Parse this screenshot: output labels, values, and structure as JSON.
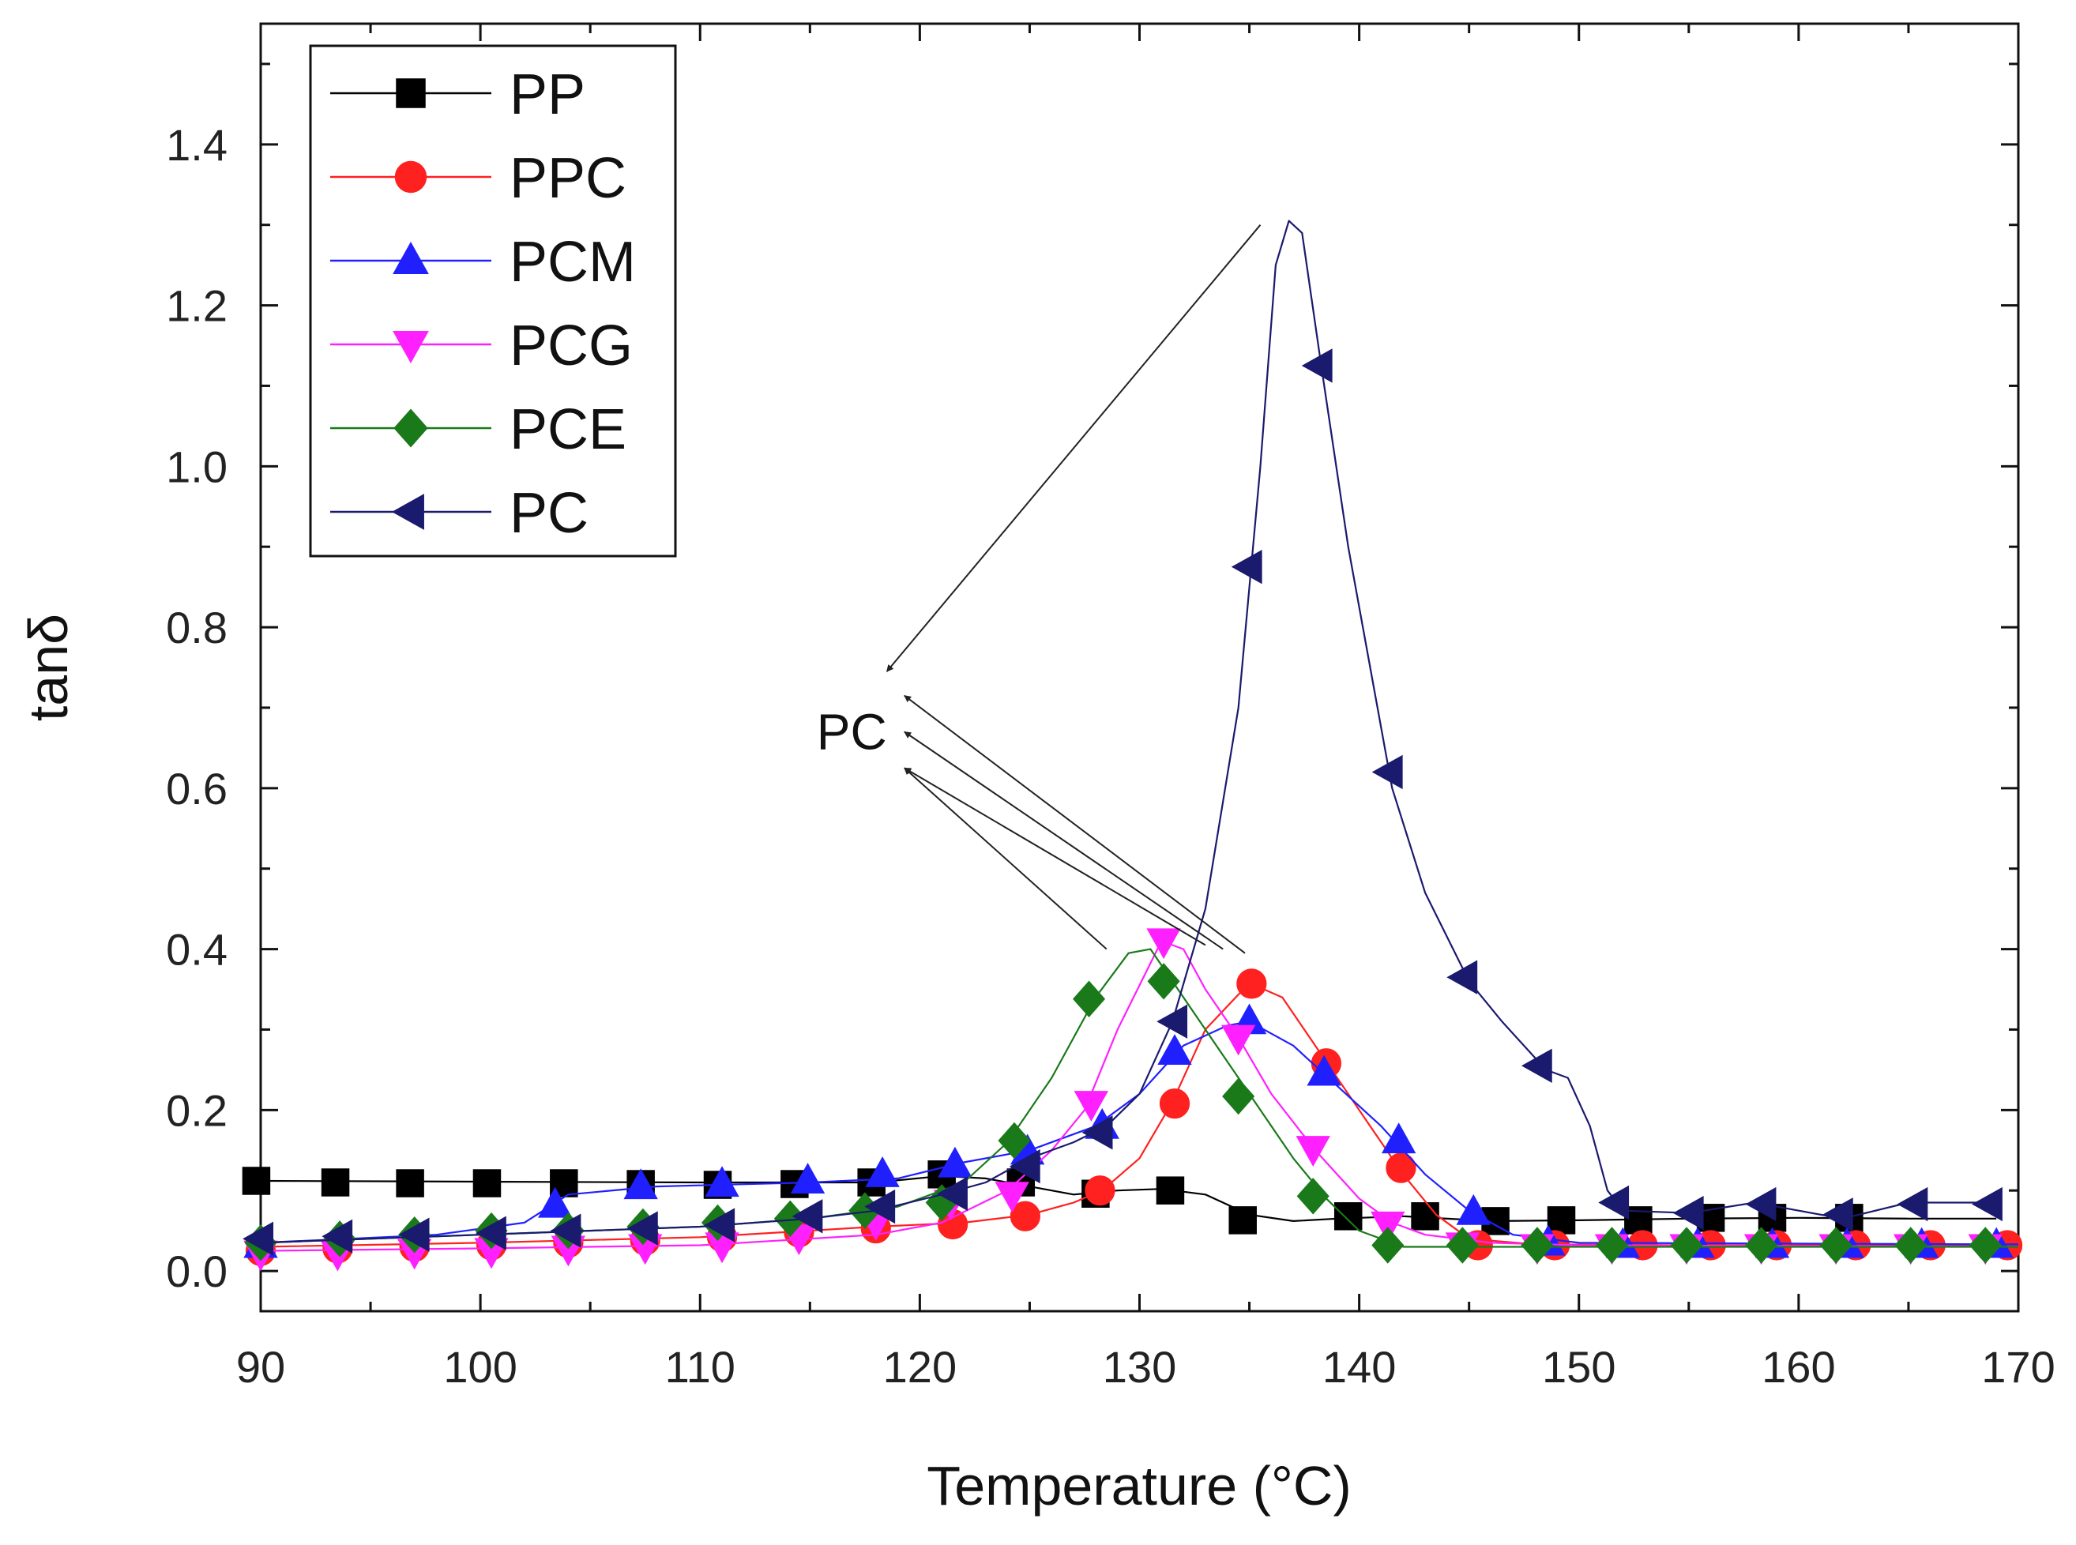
{
  "chart_data": {
    "type": "line",
    "title": "",
    "xlabel": "Temperature (°C)",
    "ylabel": "tanδ",
    "xlim": [
      90,
      170
    ],
    "ylim": [
      -0.05,
      1.55
    ],
    "xticks": [
      90,
      100,
      110,
      120,
      130,
      140,
      150,
      160,
      170
    ],
    "xtick_labels": [
      "90",
      "100",
      "110",
      "120",
      "130",
      "140",
      "150",
      "160",
      "170"
    ],
    "yticks": [
      0.0,
      0.2,
      0.4,
      0.6,
      0.8,
      1.0,
      1.2,
      1.4
    ],
    "ytick_labels": [
      "0.0",
      "0.2",
      "0.4",
      "0.6",
      "0.8",
      "1.0",
      "1.2",
      "1.4"
    ],
    "legend_position": "top-left",
    "series": [
      {
        "name": "PP",
        "color": "#000000",
        "marker": "square",
        "curve": [
          [
            90,
            0.112
          ],
          [
            100,
            0.111
          ],
          [
            110,
            0.11
          ],
          [
            118,
            0.11
          ],
          [
            121,
            0.118
          ],
          [
            123,
            0.115
          ],
          [
            125,
            0.105
          ],
          [
            127,
            0.095
          ],
          [
            129,
            0.1
          ],
          [
            131,
            0.102
          ],
          [
            133,
            0.095
          ],
          [
            135,
            0.07
          ],
          [
            137,
            0.062
          ],
          [
            139,
            0.065
          ],
          [
            142,
            0.068
          ],
          [
            146,
            0.062
          ],
          [
            150,
            0.063
          ],
          [
            155,
            0.065
          ],
          [
            160,
            0.066
          ],
          [
            165,
            0.065
          ],
          [
            169,
            0.065
          ]
        ],
        "markers": [
          [
            89.8,
            0.112
          ],
          [
            93.4,
            0.11
          ],
          [
            96.8,
            0.109
          ],
          [
            100.3,
            0.109
          ],
          [
            103.8,
            0.109
          ],
          [
            107.3,
            0.108
          ],
          [
            110.8,
            0.107
          ],
          [
            114.3,
            0.108
          ],
          [
            117.8,
            0.11
          ],
          [
            121.0,
            0.12
          ],
          [
            124.6,
            0.11
          ],
          [
            128.0,
            0.096
          ],
          [
            131.4,
            0.1
          ],
          [
            134.7,
            0.063
          ],
          [
            139.5,
            0.068
          ],
          [
            143.0,
            0.068
          ],
          [
            146.2,
            0.062
          ],
          [
            149.2,
            0.063
          ],
          [
            152.7,
            0.063
          ],
          [
            156.0,
            0.066
          ],
          [
            158.8,
            0.066
          ],
          [
            162.3,
            0.066
          ]
        ]
      },
      {
        "name": "PPC",
        "color": "#ff2020",
        "marker": "circle",
        "curve": [
          [
            90,
            0.03
          ],
          [
            100,
            0.035
          ],
          [
            110,
            0.042
          ],
          [
            118,
            0.055
          ],
          [
            122,
            0.06
          ],
          [
            125,
            0.07
          ],
          [
            127,
            0.085
          ],
          [
            128.3,
            0.1
          ],
          [
            130,
            0.14
          ],
          [
            131.5,
            0.21
          ],
          [
            133,
            0.3
          ],
          [
            135,
            0.358
          ],
          [
            136.5,
            0.34
          ],
          [
            138.5,
            0.26
          ],
          [
            140.5,
            0.18
          ],
          [
            142,
            0.12
          ],
          [
            143.5,
            0.07
          ],
          [
            145,
            0.04
          ],
          [
            148,
            0.033
          ],
          [
            155,
            0.032
          ],
          [
            170,
            0.032
          ]
        ],
        "markers": [
          [
            90.0,
            0.025
          ],
          [
            93.5,
            0.028
          ],
          [
            97.0,
            0.03
          ],
          [
            100.5,
            0.032
          ],
          [
            104.0,
            0.035
          ],
          [
            107.5,
            0.038
          ],
          [
            111.0,
            0.042
          ],
          [
            114.5,
            0.048
          ],
          [
            118.0,
            0.053
          ],
          [
            121.5,
            0.058
          ],
          [
            124.8,
            0.068
          ],
          [
            128.2,
            0.1
          ],
          [
            131.6,
            0.208
          ],
          [
            135.1,
            0.357
          ],
          [
            138.5,
            0.258
          ],
          [
            141.9,
            0.128
          ],
          [
            145.4,
            0.032
          ],
          [
            148.9,
            0.032
          ],
          [
            152.9,
            0.032
          ],
          [
            156.0,
            0.032
          ],
          [
            159.0,
            0.032
          ],
          [
            162.6,
            0.032
          ],
          [
            166.0,
            0.032
          ],
          [
            169.5,
            0.032
          ]
        ]
      },
      {
        "name": "PCM",
        "color": "#2020ff",
        "marker": "triangle-up",
        "curve": [
          [
            90,
            0.035
          ],
          [
            98,
            0.045
          ],
          [
            102,
            0.06
          ],
          [
            104,
            0.095
          ],
          [
            108,
            0.105
          ],
          [
            115,
            0.11
          ],
          [
            119,
            0.115
          ],
          [
            122,
            0.135
          ],
          [
            125,
            0.15
          ],
          [
            128,
            0.18
          ],
          [
            130,
            0.22
          ],
          [
            132,
            0.28
          ],
          [
            134,
            0.305
          ],
          [
            135,
            0.31
          ],
          [
            137,
            0.28
          ],
          [
            139,
            0.23
          ],
          [
            141,
            0.18
          ],
          [
            143,
            0.12
          ],
          [
            145,
            0.075
          ],
          [
            147,
            0.045
          ],
          [
            150,
            0.035
          ],
          [
            170,
            0.033
          ]
        ],
        "markers": [
          [
            90.0,
            0.032
          ],
          [
            103.4,
            0.082
          ],
          [
            107.3,
            0.105
          ],
          [
            111.0,
            0.108
          ],
          [
            114.9,
            0.112
          ],
          [
            118.3,
            0.12
          ],
          [
            121.6,
            0.132
          ],
          [
            124.9,
            0.148
          ],
          [
            128.3,
            0.18
          ],
          [
            131.6,
            0.272
          ],
          [
            135.0,
            0.31
          ],
          [
            138.4,
            0.246
          ],
          [
            141.8,
            0.162
          ],
          [
            145.2,
            0.073
          ],
          [
            148.6,
            0.035
          ],
          [
            152.0,
            0.032
          ],
          [
            155.4,
            0.032
          ],
          [
            158.8,
            0.032
          ],
          [
            162.2,
            0.032
          ],
          [
            165.6,
            0.032
          ],
          [
            169.0,
            0.032
          ]
        ]
      },
      {
        "name": "PCG",
        "color": "#ff20ff",
        "marker": "triangle-down",
        "curve": [
          [
            90,
            0.025
          ],
          [
            100,
            0.028
          ],
          [
            110,
            0.032
          ],
          [
            118,
            0.045
          ],
          [
            121,
            0.06
          ],
          [
            124,
            0.1
          ],
          [
            126,
            0.15
          ],
          [
            127.5,
            0.2
          ],
          [
            129,
            0.3
          ],
          [
            131,
            0.41
          ],
          [
            132,
            0.4
          ],
          [
            133,
            0.35
          ],
          [
            134.5,
            0.29
          ],
          [
            136,
            0.22
          ],
          [
            138,
            0.15
          ],
          [
            140,
            0.09
          ],
          [
            141.5,
            0.06
          ],
          [
            143,
            0.045
          ],
          [
            146,
            0.035
          ],
          [
            150,
            0.032
          ],
          [
            170,
            0.03
          ]
        ],
        "markers": [
          [
            90.0,
            0.022
          ],
          [
            93.5,
            0.022
          ],
          [
            97.0,
            0.024
          ],
          [
            100.5,
            0.025
          ],
          [
            104.0,
            0.028
          ],
          [
            107.5,
            0.03
          ],
          [
            111.0,
            0.032
          ],
          [
            114.5,
            0.042
          ],
          [
            118.0,
            0.06
          ],
          [
            121.4,
            0.085
          ],
          [
            124.2,
            0.095
          ],
          [
            127.8,
            0.208
          ],
          [
            131.1,
            0.41
          ],
          [
            134.5,
            0.29
          ],
          [
            137.9,
            0.152
          ],
          [
            141.3,
            0.058
          ],
          [
            144.7,
            0.032
          ],
          [
            148.1,
            0.03
          ],
          [
            151.5,
            0.03
          ],
          [
            154.9,
            0.03
          ],
          [
            158.3,
            0.03
          ],
          [
            161.7,
            0.03
          ],
          [
            165.1,
            0.03
          ],
          [
            168.5,
            0.03
          ]
        ]
      },
      {
        "name": "PCE",
        "color": "#1a7a1a",
        "marker": "diamond",
        "curve": [
          [
            90,
            0.035
          ],
          [
            100,
            0.045
          ],
          [
            110,
            0.055
          ],
          [
            115,
            0.065
          ],
          [
            119,
            0.08
          ],
          [
            122,
            0.11
          ],
          [
            124,
            0.16
          ],
          [
            126,
            0.24
          ],
          [
            128,
            0.34
          ],
          [
            129.5,
            0.395
          ],
          [
            130.5,
            0.4
          ],
          [
            131.5,
            0.36
          ],
          [
            133,
            0.3
          ],
          [
            135,
            0.22
          ],
          [
            137,
            0.14
          ],
          [
            138.5,
            0.09
          ],
          [
            140,
            0.05
          ],
          [
            142,
            0.03
          ],
          [
            145,
            0.03
          ],
          [
            150,
            0.03
          ],
          [
            170,
            0.03
          ]
        ],
        "markers": [
          [
            90.0,
            0.035
          ],
          [
            93.6,
            0.04
          ],
          [
            97.0,
            0.045
          ],
          [
            100.5,
            0.05
          ],
          [
            104.0,
            0.05
          ],
          [
            107.4,
            0.055
          ],
          [
            110.8,
            0.06
          ],
          [
            114.1,
            0.065
          ],
          [
            117.5,
            0.075
          ],
          [
            121.0,
            0.085
          ],
          [
            124.3,
            0.162
          ],
          [
            127.7,
            0.338
          ],
          [
            131.1,
            0.36
          ],
          [
            134.5,
            0.217
          ],
          [
            137.9,
            0.093
          ],
          [
            141.3,
            0.032
          ],
          [
            144.7,
            0.032
          ],
          [
            148.1,
            0.032
          ],
          [
            151.5,
            0.032
          ],
          [
            154.9,
            0.032
          ],
          [
            158.3,
            0.032
          ],
          [
            161.7,
            0.032
          ],
          [
            165.1,
            0.032
          ],
          [
            168.5,
            0.032
          ]
        ]
      },
      {
        "name": "PC",
        "color": "#1a1a6e",
        "marker": "triangle-left",
        "curve": [
          [
            90,
            0.035
          ],
          [
            100,
            0.045
          ],
          [
            110,
            0.055
          ],
          [
            115,
            0.065
          ],
          [
            118,
            0.075
          ],
          [
            121,
            0.095
          ],
          [
            123,
            0.11
          ],
          [
            125,
            0.14
          ],
          [
            127,
            0.16
          ],
          [
            128.5,
            0.18
          ],
          [
            130,
            0.22
          ],
          [
            131.5,
            0.31
          ],
          [
            133,
            0.45
          ],
          [
            134.5,
            0.7
          ],
          [
            135.5,
            1.0
          ],
          [
            136.2,
            1.25
          ],
          [
            136.8,
            1.305
          ],
          [
            137.4,
            1.29
          ],
          [
            138.3,
            1.12
          ],
          [
            139.5,
            0.9
          ],
          [
            140.5,
            0.75
          ],
          [
            141.5,
            0.6
          ],
          [
            143,
            0.47
          ],
          [
            145,
            0.36
          ],
          [
            146.5,
            0.31
          ],
          [
            148.5,
            0.25
          ],
          [
            149.5,
            0.24
          ],
          [
            150.5,
            0.18
          ],
          [
            151.3,
            0.1
          ],
          [
            152,
            0.075
          ],
          [
            155,
            0.072
          ],
          [
            158,
            0.085
          ],
          [
            160,
            0.075
          ],
          [
            162,
            0.065
          ],
          [
            165,
            0.085
          ],
          [
            169,
            0.085
          ]
        ],
        "markers": [
          [
            90.0,
            0.04
          ],
          [
            93.6,
            0.043
          ],
          [
            97.1,
            0.045
          ],
          [
            100.6,
            0.047
          ],
          [
            104.0,
            0.05
          ],
          [
            107.5,
            0.053
          ],
          [
            111.0,
            0.057
          ],
          [
            115.0,
            0.068
          ],
          [
            118.3,
            0.08
          ],
          [
            121.6,
            0.096
          ],
          [
            124.9,
            0.13
          ],
          [
            128.2,
            0.172
          ],
          [
            131.6,
            0.31
          ],
          [
            135.0,
            0.875
          ],
          [
            138.2,
            1.125
          ],
          [
            141.4,
            0.62
          ],
          [
            144.8,
            0.365
          ],
          [
            148.2,
            0.255
          ],
          [
            151.7,
            0.085
          ],
          [
            155.1,
            0.072
          ],
          [
            158.4,
            0.083
          ],
          [
            161.9,
            0.07
          ],
          [
            165.3,
            0.083
          ],
          [
            168.7,
            0.083
          ]
        ]
      }
    ],
    "annotations": [
      {
        "text": "PC",
        "position": [
          118.5,
          0.67
        ],
        "arrows": [
          {
            "from": [
              135.5,
              1.3
            ],
            "to": [
              118.5,
              0.745
            ]
          },
          {
            "from": [
              134.8,
              0.395
            ],
            "to": [
              119.3,
              0.715
            ]
          },
          {
            "from": [
              133.8,
              0.4
            ],
            "to": [
              119.3,
              0.67
            ]
          },
          {
            "from": [
              133.0,
              0.405
            ],
            "to": [
              119.3,
              0.625
            ]
          },
          {
            "from": [
              128.5,
              0.4
            ],
            "to": [
              119.3,
              0.625
            ]
          }
        ]
      }
    ]
  }
}
